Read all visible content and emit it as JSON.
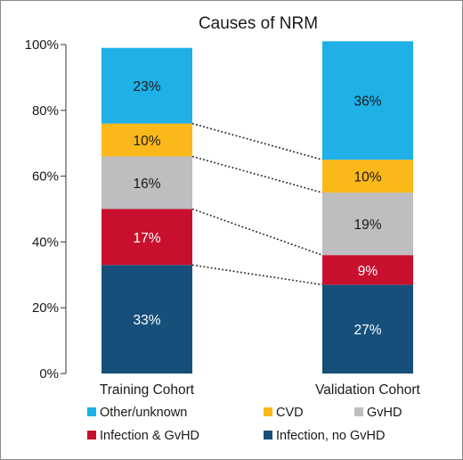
{
  "chart_data": {
    "type": "bar",
    "stacked": true,
    "title": "Causes of NRM",
    "xlabel": "",
    "ylabel": "",
    "ylim": [
      0,
      100
    ],
    "y_ticks": [
      "0%",
      "20%",
      "40%",
      "60%",
      "80%",
      "100%"
    ],
    "categories": [
      "Training Cohort",
      "Validation Cohort"
    ],
    "series": [
      {
        "name": "Infection, no GvHD",
        "values": [
          33,
          27
        ],
        "labels": [
          "33%",
          "27%"
        ],
        "color": "#16507a",
        "label_color": "#ffffff"
      },
      {
        "name": "Infection & GvHD",
        "values": [
          17,
          9
        ],
        "labels": [
          "17%",
          "9%"
        ],
        "color": "#c8102e",
        "label_color": "#ffffff"
      },
      {
        "name": "GvHD",
        "values": [
          16,
          19
        ],
        "labels": [
          "16%",
          "19%"
        ],
        "color": "#bebdbf",
        "label_color": "#1a1a1a"
      },
      {
        "name": "CVD",
        "values": [
          10,
          10
        ],
        "labels": [
          "10%",
          "10%"
        ],
        "color": "#fbb81a",
        "label_color": "#1a1a1a"
      },
      {
        "name": "Other/unknown",
        "values": [
          23,
          36
        ],
        "labels": [
          "23%",
          "36%"
        ],
        "color": "#1eb0e6",
        "label_color": "#1a1a1a"
      }
    ],
    "connectors": "dotted lines between matching segment boundaries",
    "legend": {
      "placement": "bottom",
      "order": [
        "Other/unknown",
        "CVD",
        "GvHD",
        "Infection & GvHD",
        "Infection, no GvHD"
      ]
    },
    "grid": false
  }
}
